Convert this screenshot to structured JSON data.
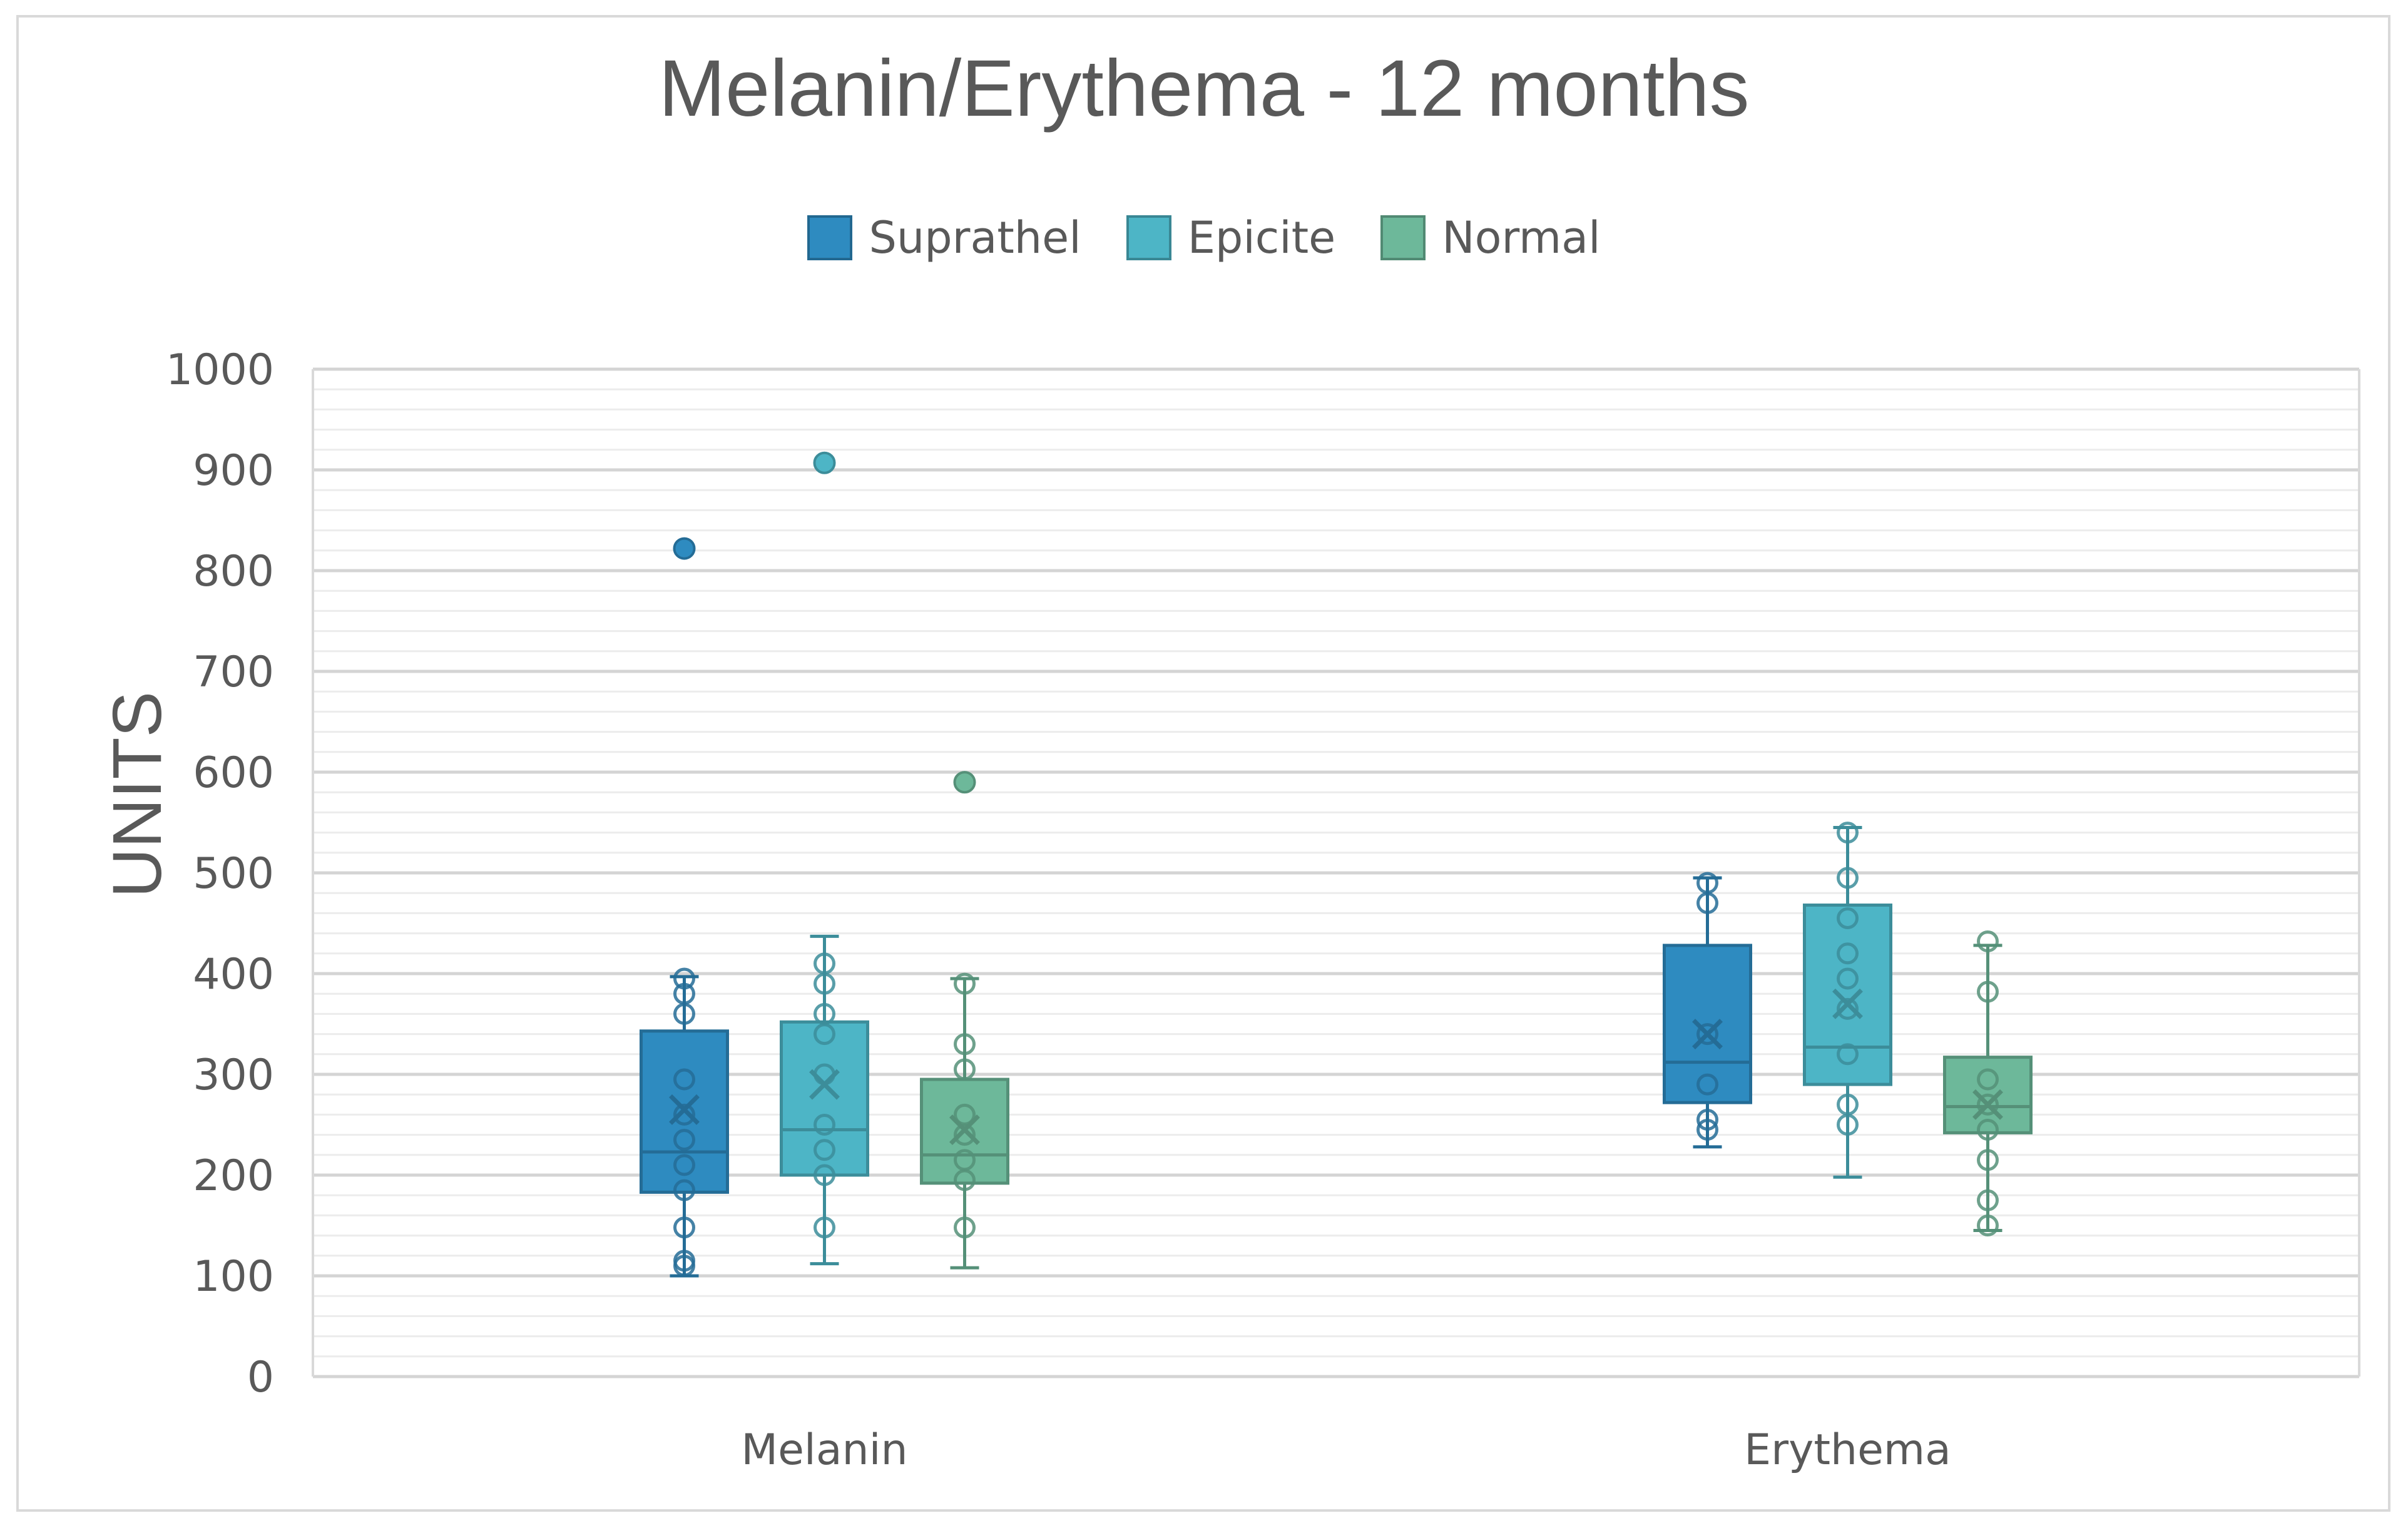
{
  "chart_data": {
    "type": "box",
    "title": "Melanin/Erythema - 12 months",
    "xlabel": "",
    "ylabel": "UNITS",
    "ylim": [
      0,
      1000
    ],
    "yticks": [
      "0",
      "100",
      "200",
      "300",
      "400",
      "500",
      "600",
      "700",
      "800",
      "900",
      "1000"
    ],
    "minor_grid_step": 20,
    "legend_position": "top-center",
    "categories": [
      "Melanin",
      "Erythema"
    ],
    "series": [
      {
        "name": "Suprathel",
        "color": "#2E8BC0",
        "boxes": [
          {
            "category": "Melanin",
            "min": 100,
            "q1": 183,
            "median": 223,
            "q3": 343,
            "max": 397,
            "mean": 265,
            "points": [
              110,
              115,
              148,
              185,
              210,
              235,
              260,
              295,
              360,
              380,
              395
            ],
            "outliers": [
              822
            ]
          },
          {
            "category": "Erythema",
            "min": 228,
            "q1": 272,
            "median": 312,
            "q3": 428,
            "max": 495,
            "mean": 340,
            "points": [
              245,
              255,
              290,
              340,
              470,
              490
            ],
            "outliers": []
          }
        ]
      },
      {
        "name": "Epicite",
        "color": "#4DB5C6",
        "boxes": [
          {
            "category": "Melanin",
            "min": 112,
            "q1": 200,
            "median": 245,
            "q3": 352,
            "max": 437,
            "mean": 290,
            "points": [
              148,
              200,
              225,
              250,
              300,
              340,
              360,
              390,
              410
            ],
            "outliers": [
              907
            ]
          },
          {
            "category": "Erythema",
            "min": 198,
            "q1": 290,
            "median": 327,
            "q3": 468,
            "max": 545,
            "mean": 370,
            "points": [
              250,
              270,
              320,
              365,
              395,
              420,
              455,
              495,
              540
            ],
            "outliers": []
          }
        ]
      },
      {
        "name": "Normal",
        "color": "#6DB89A",
        "boxes": [
          {
            "category": "Melanin",
            "min": 108,
            "q1": 192,
            "median": 220,
            "q3": 295,
            "max": 395,
            "mean": 245,
            "points": [
              148,
              195,
              215,
              240,
              260,
              305,
              330,
              390
            ],
            "outliers": [
              590
            ]
          },
          {
            "category": "Erythema",
            "min": 145,
            "q1": 242,
            "median": 268,
            "q3": 317,
            "max": 428,
            "mean": 270,
            "points": [
              150,
              175,
              215,
              245,
              270,
              295,
              382,
              432
            ],
            "outliers": []
          }
        ]
      }
    ]
  }
}
